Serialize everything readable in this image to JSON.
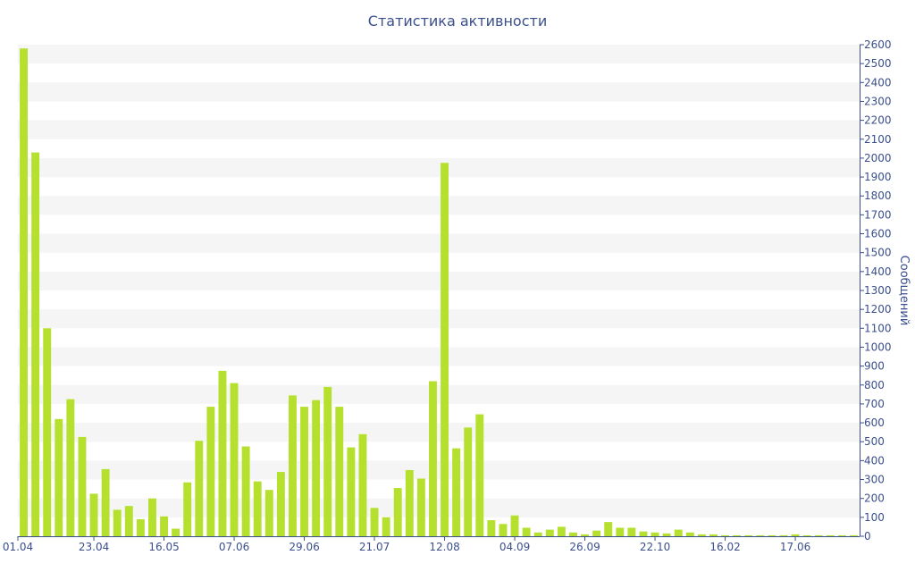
{
  "chart_data": {
    "type": "bar",
    "title": "Статистика активности",
    "xlabel": "",
    "ylabel": "Сообщений",
    "ylim": [
      0,
      2600
    ],
    "ytick_step": 100,
    "y_axis_side": "right",
    "grid": "alternating horizontal bands",
    "legend": "none",
    "bar_color": "#b5e02e",
    "axis_color": "#3b4f8c",
    "band_color": "#f5f5f5",
    "x_tick_labels": [
      {
        "index": 0,
        "label": "01.04"
      },
      {
        "index": 6,
        "label": "23.04"
      },
      {
        "index": 12,
        "label": "16.05"
      },
      {
        "index": 18,
        "label": "07.06"
      },
      {
        "index": 24,
        "label": "29.06"
      },
      {
        "index": 30,
        "label": "21.07"
      },
      {
        "index": 36,
        "label": "12.08"
      },
      {
        "index": 42,
        "label": "04.09"
      },
      {
        "index": 48,
        "label": "26.09"
      },
      {
        "index": 54,
        "label": "22.10"
      },
      {
        "index": 60,
        "label": "16.02"
      },
      {
        "index": 66,
        "label": "17.06"
      }
    ],
    "values": [
      2580,
      2030,
      1100,
      620,
      725,
      525,
      225,
      355,
      140,
      160,
      90,
      200,
      105,
      40,
      285,
      505,
      685,
      875,
      810,
      475,
      290,
      245,
      340,
      745,
      685,
      720,
      790,
      685,
      470,
      540,
      150,
      100,
      255,
      350,
      305,
      820,
      1975,
      465,
      575,
      645,
      85,
      65,
      110,
      45,
      20,
      35,
      50,
      20,
      10,
      30,
      75,
      45,
      45,
      25,
      20,
      15,
      35,
      20,
      10,
      10,
      5,
      5,
      5,
      5,
      5,
      5,
      10,
      5,
      5,
      5,
      5,
      5
    ]
  }
}
